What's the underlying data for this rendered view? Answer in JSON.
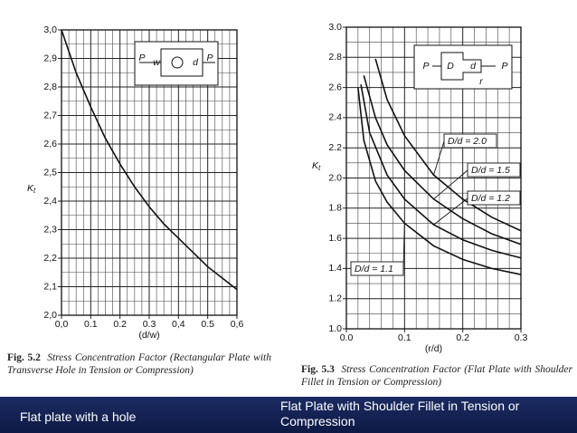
{
  "chart_data": [
    {
      "type": "line",
      "x_label": "(d/w)",
      "y_label": "K",
      "y_label_sub": "t",
      "figure_number": "Fig. 5.2",
      "caption": "Stress Concentration Factor (Rectangular Plate with Transverse Hole in Tension or Compression)",
      "inset_labels": [
        "P",
        "w",
        "d",
        "P"
      ],
      "xlim": [
        0,
        0.6
      ],
      "ylim": [
        2.0,
        3.0
      ],
      "xticks": [
        {
          "value": 0,
          "label": "0,0"
        },
        {
          "value": 0.1,
          "label": "0.1"
        },
        {
          "value": 0.2,
          "label": "0.2"
        },
        {
          "value": 0.3,
          "label": "0.3"
        },
        {
          "value": 0.4,
          "label": "0,4"
        },
        {
          "value": 0.5,
          "label": "0.5"
        },
        {
          "value": 0.6,
          "label": "0,6"
        }
      ],
      "yticks": [
        {
          "value": 2.0,
          "label": "2,0"
        },
        {
          "value": 2.1,
          "label": "2,1"
        },
        {
          "value": 2.2,
          "label": "2,2"
        },
        {
          "value": 2.3,
          "label": "2,3"
        },
        {
          "value": 2.4,
          "label": "2,4"
        },
        {
          "value": 2.5,
          "label": "2,5"
        },
        {
          "value": 2.6,
          "label": "2,6"
        },
        {
          "value": 2.7,
          "label": "2,7"
        },
        {
          "value": 2.8,
          "label": "2,8"
        },
        {
          "value": 2.9,
          "label": "2,9"
        },
        {
          "value": 3.0,
          "label": "3,0"
        }
      ],
      "grid": true,
      "color": "#111111",
      "series": [
        {
          "x": [
            0,
            0.05,
            0.1,
            0.15,
            0.2,
            0.25,
            0.3,
            0.35,
            0.4,
            0.45,
            0.5,
            0.55,
            0.6
          ],
          "values": [
            3.0,
            2.85,
            2.73,
            2.62,
            2.53,
            2.45,
            2.38,
            2.32,
            2.27,
            2.22,
            2.17,
            2.13,
            2.09
          ]
        }
      ]
    },
    {
      "type": "line",
      "x_label": "(r/d)",
      "y_label": "K",
      "y_label_sub": "t",
      "figure_number": "Fig. 5.3",
      "caption": "Stress Concentration Factor (Flat Plate with Shoulder Fillet in Tension or Compression)",
      "inset_labels": [
        "P",
        "D",
        "d",
        "P",
        "r"
      ],
      "xlim": [
        0,
        0.3
      ],
      "ylim": [
        1.0,
        3.0
      ],
      "xticks": [
        {
          "value": 0,
          "label": "0.0"
        },
        0.1,
        0.2,
        0.3
      ],
      "yticks": [
        {
          "value": 1.0,
          "label": "1.0"
        },
        1.2,
        1.4,
        1.6,
        1.8,
        {
          "value": 2.0,
          "label": "2.0"
        },
        2.2,
        2.4,
        2.6,
        2.8,
        {
          "value": 3.0,
          "label": "3.0"
        }
      ],
      "grid": true,
      "color": "#111111",
      "series": [
        {
          "name": "D/d = 2.0",
          "x": [
            0.05,
            0.07,
            0.1,
            0.15,
            0.2,
            0.25,
            0.3
          ],
          "values": [
            2.79,
            2.52,
            2.28,
            2.02,
            1.86,
            1.74,
            1.65
          ]
        },
        {
          "name": "D/d = 1.5",
          "x": [
            0.03,
            0.05,
            0.07,
            0.1,
            0.15,
            0.2,
            0.25,
            0.3
          ],
          "values": [
            2.68,
            2.4,
            2.22,
            2.05,
            1.86,
            1.73,
            1.63,
            1.56
          ]
        },
        {
          "name": "D/d = 1.2",
          "x": [
            0.025,
            0.04,
            0.07,
            0.1,
            0.15,
            0.2,
            0.25,
            0.3
          ],
          "values": [
            2.62,
            2.3,
            2.02,
            1.86,
            1.69,
            1.59,
            1.52,
            1.47
          ]
        },
        {
          "name": "D/d = 1.1",
          "x": [
            0.02,
            0.03,
            0.05,
            0.07,
            0.1,
            0.15,
            0.2,
            0.25,
            0.3
          ],
          "values": [
            2.6,
            2.25,
            1.98,
            1.84,
            1.7,
            1.55,
            1.46,
            1.4,
            1.36
          ]
        }
      ]
    }
  ],
  "slide_captions": [
    "Flat plate with a hole",
    "Flat Plate with  Shoulder Fillet in Tension or Compression"
  ]
}
